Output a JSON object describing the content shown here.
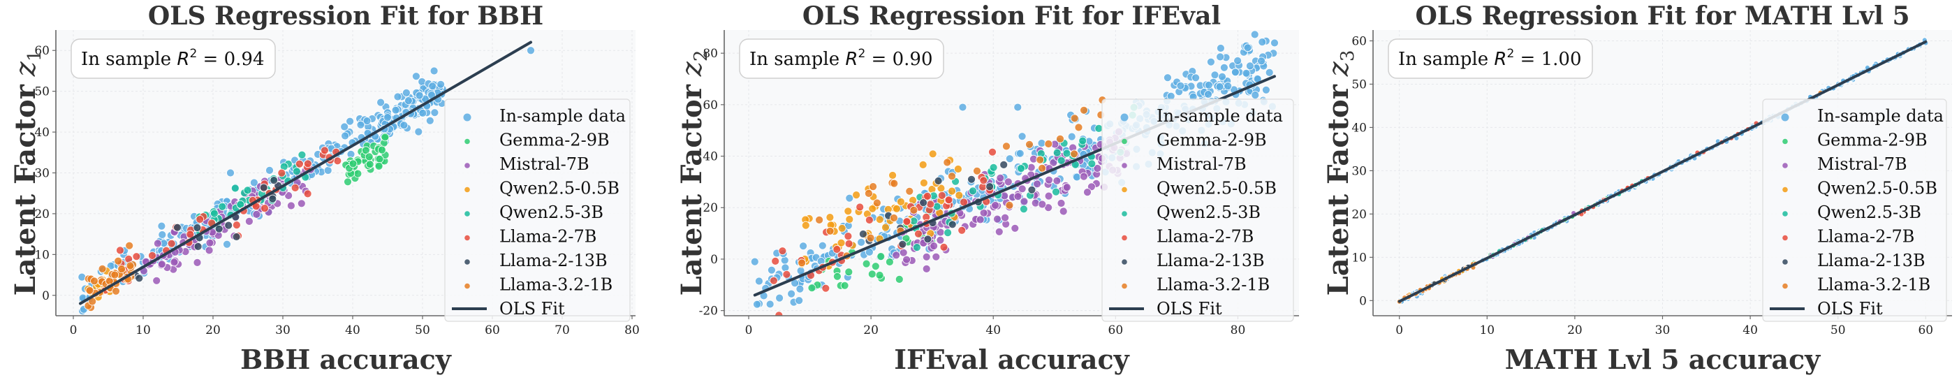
{
  "chart_data": [
    {
      "type": "scatter",
      "title": "OLS Regression Fit for BBH",
      "xlabel": "BBH accuracy",
      "ylabel": "Latent Factor",
      "ylabel_sub": "1",
      "xlim": [
        -2.5,
        80.5
      ],
      "ylim": [
        -5,
        65
      ],
      "xticks": [
        0,
        10,
        20,
        30,
        40,
        50,
        60,
        70,
        80
      ],
      "yticks": [
        0,
        10,
        20,
        30,
        40,
        50,
        60
      ],
      "grid": true,
      "legend_position": "right",
      "annotation": {
        "prefix": "In sample ",
        "symbol": "R",
        "sup": "2",
        "value": " = 0.94"
      },
      "fit": {
        "x": [
          1,
          65.5
        ],
        "y": [
          -2,
          62
        ]
      },
      "spread": 2.8,
      "clusters": [
        {
          "series": "In-sample data",
          "x_range": [
            1,
            53
          ],
          "n": 260,
          "offset": 1.5
        },
        {
          "series": "In-sample data",
          "x_range": [
            44,
            53
          ],
          "n": 70,
          "offset": 0.5
        },
        {
          "series": "Gemma-2-9B",
          "x_range": [
            39,
            45
          ],
          "n": 45,
          "offset": -6
        },
        {
          "series": "Mistral-7B",
          "x_range": [
            10,
            34
          ],
          "n": 90,
          "offset": -1.2
        },
        {
          "series": "Qwen2.5-0.5B",
          "x_range": [
            2,
            8
          ],
          "n": 20,
          "offset": 1.5
        },
        {
          "series": "Qwen2.5-3B",
          "x_range": [
            18,
            34
          ],
          "n": 35,
          "offset": 1.5
        },
        {
          "series": "Llama-2-7B",
          "x_range": [
            3,
            38
          ],
          "n": 45,
          "offset": 0.5
        },
        {
          "series": "Llama-2-13B",
          "x_range": [
            6,
            30
          ],
          "n": 15,
          "offset": -0.5
        },
        {
          "series": "Llama-3.2-1B",
          "x_range": [
            2,
            9
          ],
          "n": 40,
          "offset": 1.8
        }
      ],
      "outliers": [
        {
          "series": "In-sample data",
          "x": 65.5,
          "y": 60
        },
        {
          "series": "In-sample data",
          "x": 22.5,
          "y": 30
        },
        {
          "series": "In-sample data",
          "x": 22,
          "y": 12.5
        }
      ]
    },
    {
      "type": "scatter",
      "title": "OLS Regression Fit for IFEval",
      "xlabel": "IFEval accuracy",
      "ylabel": "Latent Factor",
      "ylabel_sub": "2",
      "xlim": [
        -4,
        90
      ],
      "ylim": [
        -22,
        89
      ],
      "xticks": [
        0,
        20,
        40,
        60,
        80
      ],
      "yticks": [
        -20,
        0,
        20,
        40,
        60,
        80
      ],
      "grid": true,
      "legend_position": "right",
      "annotation": {
        "prefix": "In sample ",
        "symbol": "R",
        "sup": "2",
        "value": " = 0.90"
      },
      "fit": {
        "x": [
          1,
          86
        ],
        "y": [
          -14,
          71
        ]
      },
      "spread": 8,
      "clusters": [
        {
          "series": "In-sample data",
          "x_range": [
            1,
            86
          ],
          "n": 340,
          "offset": 2
        },
        {
          "series": "In-sample data",
          "x_range": [
            70,
            85
          ],
          "n": 60,
          "offset": 8
        },
        {
          "series": "Gemma-2-9B",
          "x_range": [
            10,
            30
          ],
          "n": 25,
          "offset": -9
        },
        {
          "series": "Mistral-7B",
          "x_range": [
            24,
            62
          ],
          "n": 150,
          "offset": -5
        },
        {
          "series": "Qwen2.5-0.5B",
          "x_range": [
            8,
            35
          ],
          "n": 55,
          "offset": 12
        },
        {
          "series": "Qwen2.5-3B",
          "x_range": [
            25,
            65
          ],
          "n": 40,
          "offset": 3
        },
        {
          "series": "Llama-2-7B",
          "x_range": [
            4,
            40
          ],
          "n": 45,
          "offset": 3
        },
        {
          "series": "Llama-2-13B",
          "x_range": [
            14,
            50
          ],
          "n": 15,
          "offset": 0
        },
        {
          "series": "Llama-3.2-1B",
          "x_range": [
            8,
            58
          ],
          "n": 30,
          "offset": 10
        }
      ],
      "outliers": [
        {
          "series": "In-sample data",
          "x": 86,
          "y": 84
        },
        {
          "series": "In-sample data",
          "x": 35,
          "y": 59
        },
        {
          "series": "In-sample data",
          "x": 44,
          "y": 59
        },
        {
          "series": "In-sample data",
          "x": 3.5,
          "y": -17.5
        },
        {
          "series": "In-sample data",
          "x": 1,
          "y": -1
        }
      ]
    },
    {
      "type": "scatter",
      "title": "OLS Regression Fit for MATH Lvl 5",
      "xlabel": "MATH Lvl 5 accuracy",
      "ylabel": "Latent Factor",
      "ylabel_sub": "3",
      "xlim": [
        -3,
        63
      ],
      "ylim": [
        -3.5,
        62.5
      ],
      "xticks": [
        0,
        10,
        20,
        30,
        40,
        50,
        60
      ],
      "yticks": [
        0,
        10,
        20,
        30,
        40,
        50,
        60
      ],
      "grid": true,
      "legend_position": "right",
      "annotation": {
        "prefix": "In sample ",
        "symbol": "R",
        "sup": "2",
        "value": " = 1.00"
      },
      "fit": {
        "x": [
          0,
          60
        ],
        "y": [
          -0.2,
          59.8
        ]
      },
      "spread": 0.25,
      "clusters": [
        {
          "series": "In-sample data",
          "x_range": [
            0,
            60
          ],
          "n": 320,
          "offset": 0
        },
        {
          "series": "Gemma-2-9B",
          "x_range": [
            8,
            24
          ],
          "n": 20,
          "offset": 0
        },
        {
          "series": "Mistral-7B",
          "x_range": [
            10,
            22
          ],
          "n": 12,
          "offset": 0
        },
        {
          "series": "Qwen2.5-0.5B",
          "x_range": [
            0,
            8
          ],
          "n": 12,
          "offset": 0
        },
        {
          "series": "Qwen2.5-3B",
          "x_range": [
            10,
            28
          ],
          "n": 15,
          "offset": 0
        },
        {
          "series": "Llama-2-7B",
          "x_range": [
            20,
            41
          ],
          "n": 20,
          "offset": 0
        },
        {
          "series": "Llama-2-13B",
          "x_range": [
            3,
            8
          ],
          "n": 8,
          "offset": 0
        },
        {
          "series": "Llama-3.2-1B",
          "x_range": [
            0,
            9
          ],
          "n": 25,
          "offset": 0
        }
      ],
      "outliers": [
        {
          "series": "In-sample data",
          "x": 60,
          "y": 59.5
        },
        {
          "series": "Llama-3.2-1B",
          "x": 48,
          "y": 48
        }
      ]
    }
  ],
  "legend": {
    "series": [
      {
        "name": "In-sample data",
        "color": "#5dade2"
      },
      {
        "name": "Gemma-2-9B",
        "color": "#2ecc71"
      },
      {
        "name": "Mistral-7B",
        "color": "#9b59b6"
      },
      {
        "name": "Qwen2.5-0.5B",
        "color": "#f39c12"
      },
      {
        "name": "Qwen2.5-3B",
        "color": "#1abc9c"
      },
      {
        "name": "Llama-2-7B",
        "color": "#e74c3c"
      },
      {
        "name": "Llama-2-13B",
        "color": "#34495e"
      },
      {
        "name": "Llama-3.2-1B",
        "color": "#e67e22"
      }
    ],
    "fit_label": "OLS Fit",
    "fit_color": "#2c3e50"
  },
  "colors": {
    "plot_bg": "#f8f9fa",
    "grid": "#e6e8eb",
    "spine": "#666666",
    "text": "#333333"
  }
}
